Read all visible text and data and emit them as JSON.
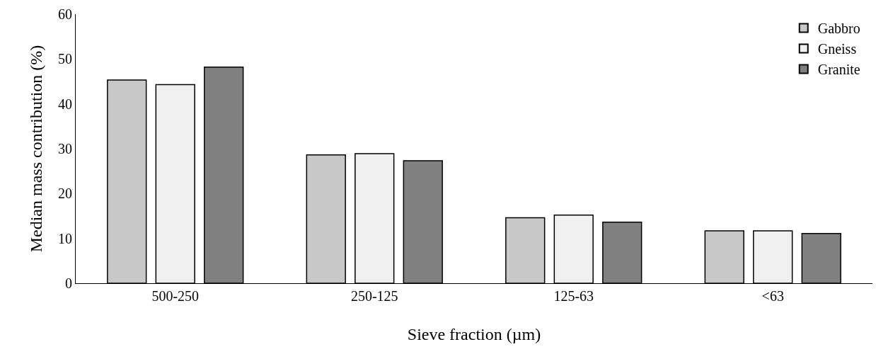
{
  "chart_data": {
    "type": "bar",
    "xlabel": "Sieve fraction (µm)",
    "ylabel": "Median mass contribution (%)",
    "categories": [
      "500-250",
      "250-125",
      "125-63",
      "<63"
    ],
    "series": [
      {
        "name": "Gabbro",
        "color": "#c8c8c8",
        "values": [
          45.3,
          28.6,
          14.6,
          11.7
        ]
      },
      {
        "name": "Gneiss",
        "color": "#f0f0f0",
        "values": [
          44.3,
          28.9,
          15.2,
          11.7
        ]
      },
      {
        "name": "Granite",
        "color": "#808080",
        "values": [
          48.2,
          27.3,
          13.6,
          11.1
        ]
      }
    ],
    "ylim": [
      0,
      60
    ],
    "yticks": [
      0,
      10,
      20,
      30,
      40,
      50,
      60
    ],
    "grid": false,
    "legend": "top right"
  }
}
